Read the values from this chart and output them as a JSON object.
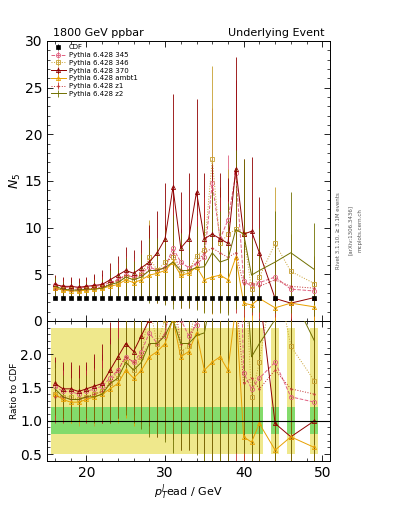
{
  "title_left": "1800 GeV ppbar",
  "title_right": "Underlying Event",
  "ylabel_main": "N$_5$",
  "ylabel_ratio": "Ratio to CDF",
  "xlabel": "p$_T^{l}$ead / GeV",
  "rivet_text": "Rivet 3.1.10, ≥ 3.1M events",
  "arxiv_text": "[arXiv:1306.3436]",
  "mcplots_text": "mcplots.cern.ch",
  "xlim": [
    15.0,
    51.0
  ],
  "ylim_main": [
    0,
    30
  ],
  "ylim_ratio": [
    0.4,
    2.5
  ],
  "x_ticks": [
    20,
    30,
    40,
    50
  ],
  "cdf_x": [
    16,
    17,
    18,
    19,
    20,
    21,
    22,
    23,
    24,
    25,
    26,
    27,
    28,
    29,
    30,
    31,
    32,
    33,
    34,
    35,
    36,
    37,
    38,
    39,
    40,
    41,
    42,
    44,
    46,
    49
  ],
  "cdf_y": [
    2.5,
    2.5,
    2.5,
    2.5,
    2.5,
    2.5,
    2.5,
    2.5,
    2.5,
    2.5,
    2.5,
    2.5,
    2.5,
    2.5,
    2.5,
    2.5,
    2.5,
    2.5,
    2.5,
    2.5,
    2.5,
    2.5,
    2.5,
    2.5,
    2.5,
    2.5,
    2.5,
    2.5,
    2.5,
    2.5
  ],
  "cdf_yerr": [
    0.08,
    0.08,
    0.08,
    0.08,
    0.08,
    0.08,
    0.08,
    0.08,
    0.08,
    0.08,
    0.08,
    0.08,
    0.08,
    0.08,
    0.08,
    0.08,
    0.08,
    0.08,
    0.08,
    0.08,
    0.08,
    0.08,
    0.08,
    0.08,
    0.08,
    0.08,
    0.08,
    0.08,
    0.08,
    0.08
  ],
  "py345_x": [
    16,
    17,
    18,
    19,
    20,
    21,
    22,
    23,
    24,
    25,
    26,
    27,
    28,
    29,
    30,
    31,
    32,
    33,
    34,
    35,
    36,
    37,
    38,
    39,
    40,
    41,
    42,
    44,
    46,
    49
  ],
  "py345_y": [
    3.8,
    3.6,
    3.6,
    3.5,
    3.6,
    3.7,
    3.8,
    4.1,
    4.4,
    4.9,
    4.7,
    5.1,
    5.8,
    5.4,
    5.7,
    7.8,
    6.3,
    5.7,
    6.1,
    6.8,
    14.8,
    8.8,
    10.8,
    15.8,
    4.3,
    3.7,
    4.1,
    4.7,
    3.4,
    3.2
  ],
  "py345_yerr": [
    1.0,
    1.0,
    1.0,
    1.0,
    1.0,
    1.2,
    1.2,
    1.5,
    1.5,
    1.8,
    1.8,
    2.0,
    2.5,
    2.5,
    2.8,
    4.0,
    3.5,
    3.0,
    3.5,
    4.0,
    8.0,
    5.0,
    7.0,
    10.0,
    3.0,
    2.5,
    2.5,
    3.0,
    2.5,
    2.0
  ],
  "py346_x": [
    16,
    17,
    18,
    19,
    20,
    21,
    22,
    23,
    24,
    25,
    26,
    27,
    28,
    29,
    30,
    31,
    32,
    33,
    34,
    35,
    36,
    37,
    38,
    39,
    40,
    41,
    42,
    44,
    46,
    49
  ],
  "py346_y": [
    3.5,
    3.4,
    3.4,
    3.3,
    3.4,
    3.5,
    3.6,
    3.9,
    4.1,
    4.7,
    4.4,
    4.9,
    6.8,
    5.4,
    6.3,
    6.8,
    5.1,
    5.3,
    7.0,
    7.6,
    17.3,
    8.3,
    9.3,
    9.8,
    9.3,
    3.4,
    4.7,
    8.3,
    5.3,
    4.0
  ],
  "py346_yerr": [
    1.0,
    1.0,
    1.0,
    1.0,
    1.0,
    1.2,
    1.2,
    1.5,
    1.5,
    2.0,
    2.0,
    2.5,
    4.0,
    3.0,
    4.0,
    4.5,
    3.5,
    3.5,
    4.5,
    5.0,
    10.0,
    6.0,
    7.0,
    8.0,
    7.0,
    3.0,
    3.5,
    6.0,
    4.0,
    3.0
  ],
  "py370_x": [
    16,
    17,
    18,
    19,
    20,
    21,
    22,
    23,
    24,
    25,
    26,
    27,
    28,
    29,
    30,
    31,
    32,
    33,
    34,
    35,
    36,
    37,
    38,
    39,
    40,
    41,
    42,
    44,
    46,
    49
  ],
  "py370_y": [
    3.9,
    3.7,
    3.7,
    3.6,
    3.7,
    3.8,
    3.9,
    4.4,
    4.9,
    5.4,
    5.1,
    5.7,
    6.3,
    7.3,
    8.8,
    14.3,
    7.8,
    8.8,
    13.8,
    8.8,
    9.3,
    8.8,
    8.3,
    16.3,
    9.3,
    9.6,
    7.3,
    2.4,
    1.9,
    2.5
  ],
  "py370_yerr": [
    1.0,
    1.0,
    1.0,
    1.0,
    1.0,
    1.2,
    1.5,
    1.8,
    2.0,
    2.5,
    2.5,
    3.0,
    4.0,
    4.5,
    6.0,
    10.0,
    6.0,
    7.0,
    10.0,
    7.0,
    7.5,
    7.0,
    7.0,
    12.0,
    8.0,
    8.0,
    6.0,
    2.5,
    2.0,
    2.5
  ],
  "pyambt1_x": [
    16,
    17,
    18,
    19,
    20,
    21,
    22,
    23,
    24,
    25,
    26,
    27,
    28,
    29,
    30,
    31,
    32,
    33,
    34,
    35,
    36,
    37,
    38,
    39,
    40,
    41,
    42,
    44,
    46,
    49
  ],
  "pyambt1_y": [
    3.5,
    3.3,
    3.2,
    3.2,
    3.3,
    3.4,
    3.5,
    3.7,
    3.9,
    4.4,
    4.1,
    4.4,
    4.9,
    5.1,
    5.4,
    6.3,
    4.9,
    5.1,
    5.8,
    4.4,
    4.7,
    4.9,
    4.4,
    6.8,
    1.9,
    1.7,
    2.4,
    1.4,
    1.9,
    1.5
  ],
  "pyambt1_yerr": [
    1.0,
    0.8,
    0.8,
    0.8,
    0.8,
    1.0,
    1.0,
    1.2,
    1.5,
    1.8,
    1.8,
    2.0,
    2.5,
    3.0,
    3.5,
    4.5,
    3.5,
    3.5,
    4.0,
    3.5,
    4.0,
    4.0,
    3.5,
    5.5,
    2.0,
    1.8,
    2.0,
    1.5,
    1.5,
    1.5
  ],
  "pyz1_x": [
    16,
    17,
    18,
    19,
    20,
    21,
    22,
    23,
    24,
    25,
    26,
    27,
    28,
    29,
    30,
    31,
    32,
    33,
    34,
    35,
    36,
    37,
    38,
    39,
    40,
    41,
    42,
    44,
    46,
    49
  ],
  "pyz1_y": [
    3.4,
    3.4,
    3.3,
    3.3,
    3.4,
    3.5,
    3.6,
    3.9,
    4.4,
    4.9,
    4.7,
    4.9,
    5.4,
    5.4,
    5.8,
    7.3,
    5.4,
    5.4,
    6.3,
    7.3,
    7.8,
    7.3,
    6.8,
    7.3,
    3.9,
    4.1,
    3.7,
    4.4,
    3.7,
    3.5
  ],
  "pyz1_yerr": [
    1.0,
    1.0,
    0.8,
    0.8,
    1.0,
    1.0,
    1.2,
    1.5,
    1.8,
    2.0,
    2.0,
    2.5,
    3.0,
    3.5,
    4.0,
    5.5,
    4.0,
    4.0,
    5.0,
    6.0,
    7.0,
    6.0,
    6.0,
    6.5,
    3.5,
    3.5,
    3.5,
    4.0,
    3.5,
    3.0
  ],
  "pyz2_x": [
    16,
    17,
    18,
    19,
    20,
    21,
    22,
    23,
    24,
    25,
    26,
    27,
    28,
    29,
    30,
    31,
    32,
    33,
    34,
    35,
    36,
    37,
    38,
    39,
    40,
    41,
    42,
    44,
    46,
    49
  ],
  "pyz2_y": [
    3.7,
    3.4,
    3.3,
    3.3,
    3.4,
    3.4,
    3.5,
    3.9,
    4.1,
    4.7,
    4.4,
    4.7,
    5.4,
    5.4,
    5.7,
    6.3,
    5.4,
    5.4,
    5.7,
    5.8,
    7.3,
    6.3,
    6.6,
    9.8,
    9.3,
    4.9,
    5.4,
    6.3,
    7.3,
    5.5
  ],
  "pyz2_yerr": [
    1.0,
    0.8,
    0.8,
    0.8,
    0.8,
    1.0,
    1.0,
    1.5,
    1.5,
    2.0,
    2.0,
    2.5,
    3.5,
    3.5,
    4.0,
    5.0,
    4.0,
    4.0,
    4.5,
    5.0,
    6.5,
    5.5,
    6.0,
    8.5,
    8.0,
    4.0,
    4.5,
    5.5,
    6.5,
    5.0
  ],
  "band_yellow_lo": 0.5,
  "band_yellow_hi": 2.4,
  "band_green_lo": 0.8,
  "band_green_hi": 1.2,
  "color_345": "#e06080",
  "color_346": "#c8a030",
  "color_370": "#900000",
  "color_ambt1": "#e8a000",
  "color_z1": "#c03030",
  "color_z2": "#707000",
  "color_cdf": "#000000",
  "band_green": "#00cc44",
  "band_yellow": "#ddcc00",
  "band_green_alpha": 0.45,
  "band_yellow_alpha": 0.45
}
